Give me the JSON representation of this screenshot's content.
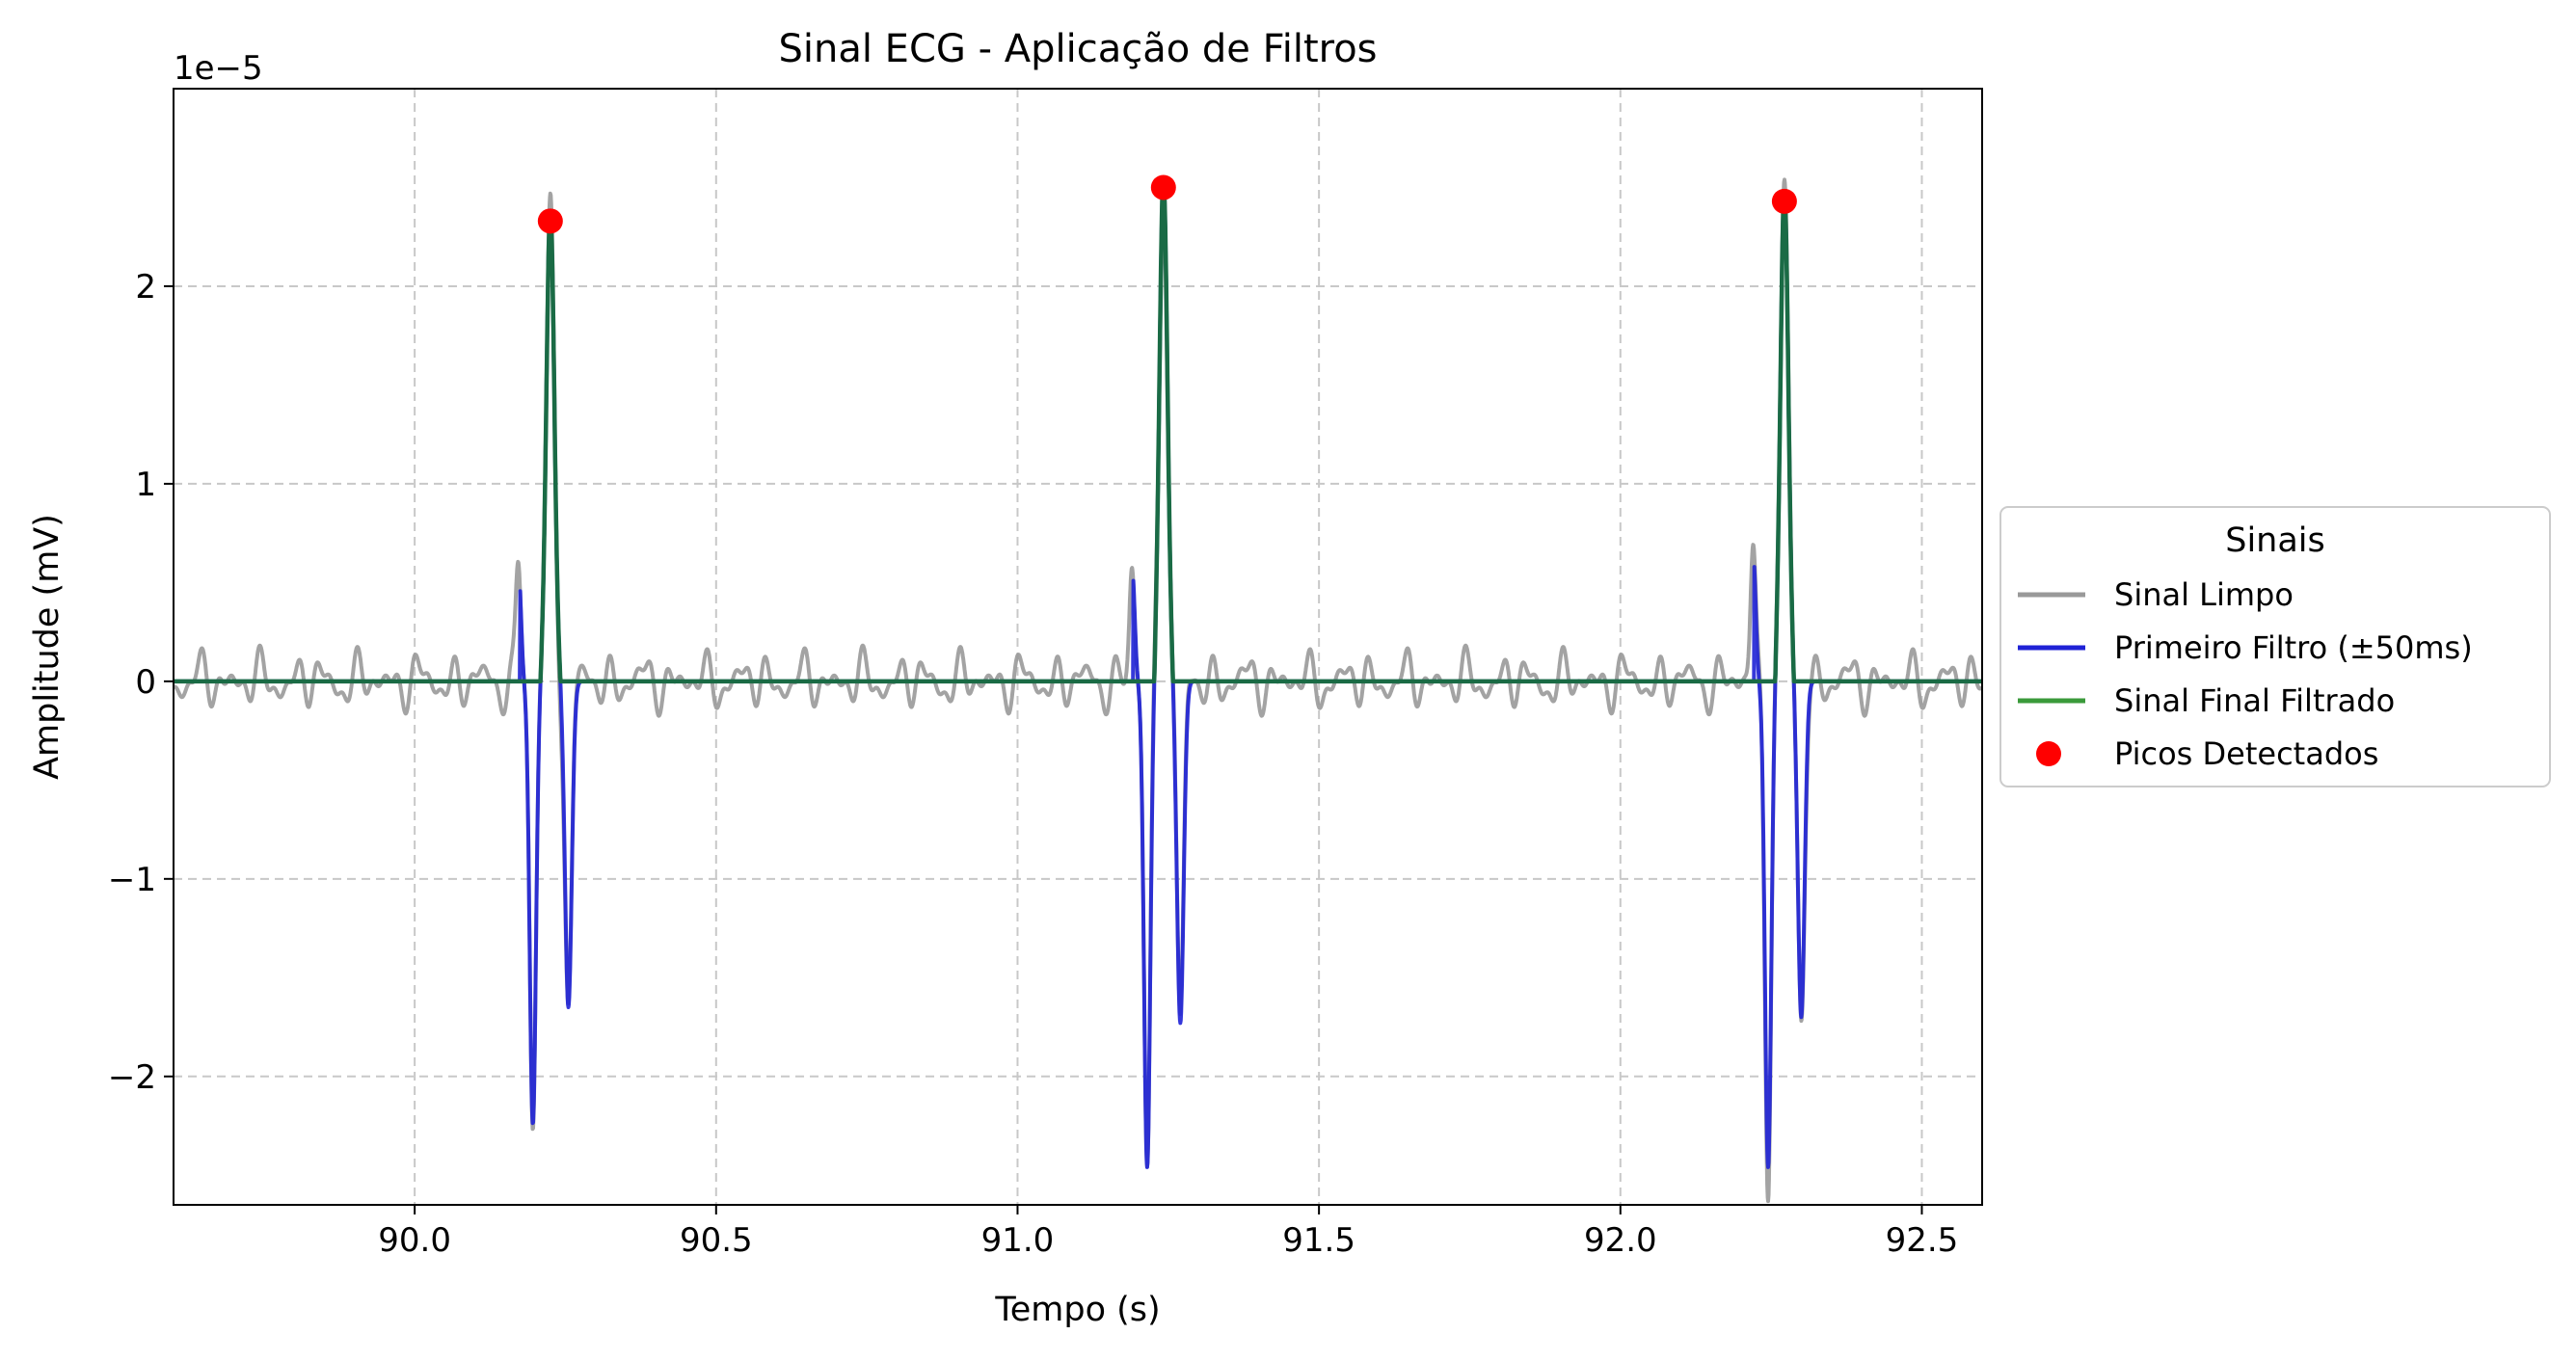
{
  "chart_data": {
    "type": "line",
    "title": "Sinal ECG - Aplicação de Filtros",
    "xlabel": "Tempo (s)",
    "ylabel": "Amplitude (mV)",
    "y_offset_text": "1e−5",
    "xlim": [
      89.6,
      92.6
    ],
    "ylim": [
      -2.65,
      3.0
    ],
    "y_scale_factor": 1e-05,
    "x_ticks": [
      90.0,
      90.5,
      91.0,
      91.5,
      92.0,
      92.5
    ],
    "x_tick_labels": [
      "90.0",
      "90.5",
      "91.0",
      "91.5",
      "92.0",
      "92.5"
    ],
    "y_ticks": [
      -2,
      -1,
      0,
      1,
      2
    ],
    "y_tick_labels": [
      "−2",
      "−1",
      "0",
      "1",
      "2"
    ],
    "grid": true,
    "legend": {
      "title": "Sinais",
      "placement": "outside-right-center",
      "entries": [
        {
          "label": "Sinal Limpo",
          "kind": "line",
          "color": "#999999"
        },
        {
          "label": "Primeiro Filtro (±50ms)",
          "kind": "line",
          "color": "#1f22d6"
        },
        {
          "label": "Sinal Final Filtrado",
          "kind": "line",
          "color": "#3a9a3a"
        },
        {
          "label": "Picos Detectados",
          "kind": "marker",
          "color": "#ff0000"
        }
      ]
    },
    "beats": [
      {
        "r_time": 90.225,
        "r_amp": 2.33,
        "q_time": 90.172,
        "q_amp": 0.44,
        "s1_time": 90.196,
        "s1_amp": -1.79,
        "s2_time": 90.255,
        "s2_amp": -1.35
      },
      {
        "r_time": 91.242,
        "r_amp": 2.5,
        "q_time": 91.19,
        "q_amp": 0.43,
        "s1_time": 91.215,
        "s1_amp": -2.01,
        "s2_time": 91.27,
        "s2_amp": -1.43
      },
      {
        "r_time": 92.272,
        "r_amp": 2.43,
        "q_time": 92.22,
        "q_amp": 0.51,
        "s1_time": 92.245,
        "s1_amp": -2.01,
        "s2_time": 92.3,
        "s2_amp": -1.4
      }
    ],
    "series": [
      {
        "name": "Sinal Limpo",
        "color": "#999999",
        "description": "small oscillations around 0 (about ±0.2) plus QRS complexes"
      },
      {
        "name": "Primeiro Filtro (±50ms)",
        "color": "#1f22d6",
        "description": "zero except within ±50ms of each R peak"
      },
      {
        "name": "Sinal Final Filtrado",
        "color": "#1a6b45",
        "description": "zero except the R peak spike"
      }
    ],
    "peaks": {
      "name": "Picos Detectados",
      "color": "#ff0000",
      "x": [
        90.225,
        91.242,
        92.272
      ],
      "y": [
        2.33,
        2.5,
        2.43
      ]
    }
  }
}
